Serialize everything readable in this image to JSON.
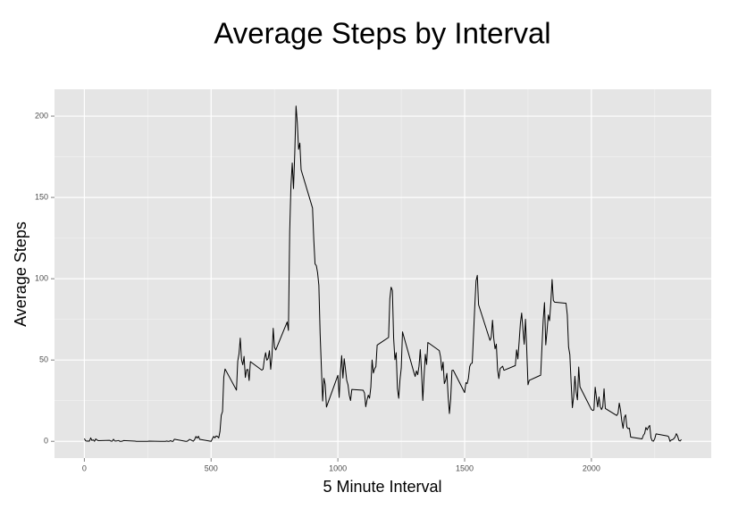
{
  "chart_data": {
    "type": "line",
    "title": "Average Steps by Interval",
    "x_label": "5 Minute Interval",
    "y_label": "Average Steps",
    "color": "#000000",
    "panel_color": "#e5e5e5",
    "grid": true,
    "xlim": [
      -117.75,
      2472.75
    ],
    "ylim": [
      -10.31,
      216.5
    ],
    "xticks": [
      0,
      500,
      1000,
      1500,
      2000
    ],
    "yticks": [
      0,
      50,
      100,
      150,
      200
    ],
    "x_minor_grid": [
      250,
      750,
      1250,
      1750,
      2250
    ],
    "y_minor_grid": [
      25,
      75,
      125,
      175
    ],
    "x": [
      0,
      5,
      10,
      15,
      20,
      25,
      30,
      35,
      40,
      45,
      50,
      55,
      100,
      105,
      110,
      115,
      120,
      125,
      130,
      135,
      140,
      145,
      150,
      155,
      200,
      205,
      210,
      215,
      220,
      225,
      230,
      235,
      240,
      245,
      250,
      255,
      300,
      305,
      310,
      315,
      320,
      325,
      330,
      335,
      340,
      345,
      350,
      355,
      400,
      405,
      410,
      415,
      420,
      425,
      430,
      435,
      440,
      445,
      450,
      455,
      500,
      505,
      510,
      515,
      520,
      525,
      530,
      535,
      540,
      545,
      550,
      555,
      600,
      605,
      610,
      615,
      620,
      625,
      630,
      635,
      640,
      645,
      650,
      655,
      700,
      705,
      710,
      715,
      720,
      725,
      730,
      735,
      740,
      745,
      750,
      755,
      800,
      805,
      810,
      815,
      820,
      825,
      830,
      835,
      840,
      845,
      850,
      855,
      900,
      905,
      910,
      915,
      920,
      925,
      930,
      935,
      940,
      945,
      950,
      955,
      1000,
      1005,
      1010,
      1015,
      1020,
      1025,
      1030,
      1035,
      1040,
      1045,
      1050,
      1055,
      1100,
      1105,
      1110,
      1115,
      1120,
      1125,
      1130,
      1135,
      1140,
      1145,
      1150,
      1155,
      1200,
      1205,
      1210,
      1215,
      1220,
      1225,
      1230,
      1235,
      1240,
      1245,
      1250,
      1255,
      1300,
      1305,
      1310,
      1315,
      1320,
      1325,
      1330,
      1335,
      1340,
      1345,
      1350,
      1355,
      1400,
      1405,
      1410,
      1415,
      1420,
      1425,
      1430,
      1435,
      1440,
      1445,
      1450,
      1455,
      1500,
      1505,
      1510,
      1515,
      1520,
      1525,
      1530,
      1535,
      1540,
      1545,
      1550,
      1555,
      1600,
      1605,
      1610,
      1615,
      1620,
      1625,
      1630,
      1635,
      1640,
      1645,
      1650,
      1655,
      1700,
      1705,
      1710,
      1715,
      1720,
      1725,
      1730,
      1735,
      1740,
      1745,
      1750,
      1755,
      1800,
      1805,
      1810,
      1815,
      1820,
      1825,
      1830,
      1835,
      1840,
      1845,
      1850,
      1855,
      1900,
      1905,
      1910,
      1915,
      1920,
      1925,
      1930,
      1935,
      1940,
      1945,
      1950,
      1955,
      2000,
      2005,
      2010,
      2015,
      2020,
      2025,
      2030,
      2035,
      2040,
      2045,
      2050,
      2055,
      2100,
      2105,
      2110,
      2115,
      2120,
      2125,
      2130,
      2135,
      2140,
      2145,
      2150,
      2155,
      2200,
      2205,
      2210,
      2215,
      2220,
      2225,
      2230,
      2235,
      2240,
      2245,
      2250,
      2255,
      2300,
      2305,
      2310,
      2315,
      2320,
      2325,
      2330,
      2335,
      2340,
      2345,
      2350,
      2355
    ],
    "values": [
      1.7,
      0.3,
      0.1,
      0.2,
      0.1,
      2.1,
      0.5,
      0.9,
      0,
      1.5,
      0.8,
      0.4,
      0.6,
      0.1,
      0.1,
      1.3,
      0.2,
      0.2,
      0.3,
      0.5,
      0,
      0,
      0.1,
      0.5,
      0.1,
      0,
      0,
      0,
      0,
      0,
      0,
      0,
      0,
      0,
      0,
      0.1,
      0,
      0,
      0,
      0,
      0,
      0.2,
      0,
      0,
      0.4,
      0,
      0,
      1.3,
      0,
      0,
      0.5,
      1.2,
      0.9,
      0.4,
      0.1,
      1.1,
      3.0,
      2.0,
      3.1,
      1.2,
      0,
      1.6,
      3.0,
      2.2,
      3.3,
      3.0,
      2.1,
      6.1,
      16.0,
      18.3,
      39.5,
      44.5,
      31.5,
      49.3,
      53.8,
      63.5,
      50.0,
      47.1,
      52.2,
      39.3,
      44.0,
      44.2,
      37.4,
      49.0,
      43.8,
      44.4,
      50.5,
      54.5,
      49.9,
      51.0,
      55.7,
      44.3,
      52.3,
      69.5,
      57.8,
      56.2,
      73.4,
      68.2,
      129.4,
      157.5,
      171.2,
      155.4,
      177.3,
      206.2,
      195.9,
      179.6,
      183.4,
      167.0,
      143.5,
      124.0,
      109.1,
      108.1,
      103.7,
      96.0,
      66.2,
      45.2,
      24.8,
      38.8,
      35.0,
      21.1,
      40.6,
      27.0,
      42.4,
      52.7,
      38.9,
      50.8,
      44.3,
      37.4,
      34.7,
      28.3,
      25.1,
      31.9,
      31.4,
      29.7,
      21.3,
      25.5,
      28.4,
      26.5,
      33.3,
      50.0,
      42.0,
      44.6,
      46.0,
      59.2,
      63.9,
      87.7,
      94.8,
      92.8,
      63.4,
      50.2,
      54.5,
      32.4,
      26.5,
      37.7,
      45.1,
      67.3,
      42.3,
      39.9,
      43.3,
      41.0,
      46.2,
      56.4,
      42.8,
      25.1,
      40.0,
      53.5,
      47.3,
      60.8,
      55.8,
      52.0,
      43.6,
      48.7,
      35.5,
      37.5,
      41.8,
      27.5,
      17.1,
      26.1,
      43.6,
      43.8,
      30.0,
      36.1,
      35.5,
      38.8,
      46.0,
      47.8,
      48.1,
      65.3,
      82.9,
      98.7,
      102.1,
      84.0,
      62.1,
      64.1,
      74.5,
      63.2,
      56.9,
      59.8,
      43.9,
      38.6,
      44.7,
      45.5,
      46.2,
      43.7,
      46.6,
      56.3,
      50.7,
      61.2,
      72.7,
      78.9,
      68.9,
      59.7,
      75.1,
      56.5,
      34.8,
      37.5,
      40.7,
      58.0,
      74.7,
      85.3,
      59.3,
      67.8,
      77.7,
      74.2,
      85.3,
      99.5,
      86.6,
      85.6,
      84.9,
      77.8,
      58.0,
      53.4,
      36.3,
      20.7,
      27.4,
      40.0,
      30.2,
      25.5,
      45.7,
      33.5,
      19.6,
      19.0,
      19.3,
      33.3,
      26.8,
      21.2,
      27.3,
      21.3,
      19.5,
      21.3,
      32.3,
      20.2,
      15.9,
      17.2,
      23.5,
      19.2,
      12.5,
      8.0,
      14.7,
      16.3,
      8.7,
      7.8,
      8.1,
      2.6,
      1.5,
      3.7,
      4.8,
      8.5,
      7.1,
      8.7,
      9.8,
      2.2,
      0.3,
      0.1,
      1.6,
      4.6,
      3.3,
      2.8,
      0,
      0.8,
      1.0,
      1.6,
      2.6,
      4.7,
      3.3,
      0.6,
      0.2,
      1.1
    ]
  }
}
